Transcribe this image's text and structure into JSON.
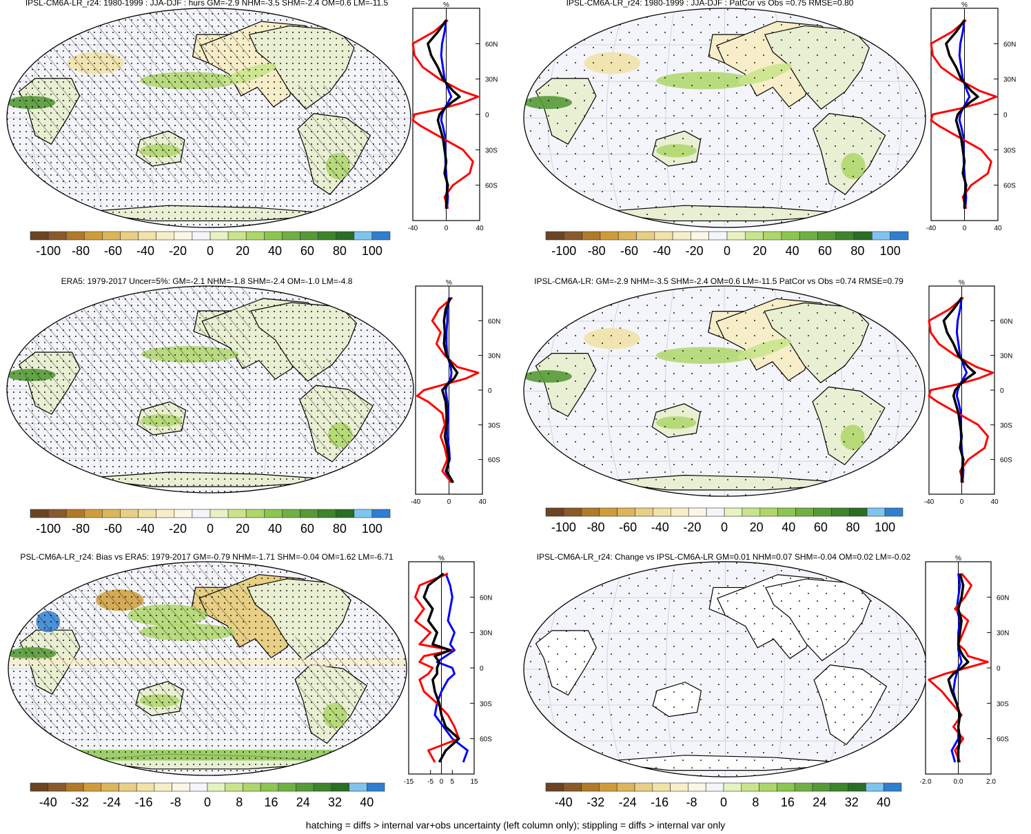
{
  "footnote": "hatching = diffs > internal var+obs uncertainty (left column only); stippling = diffs > internal var only",
  "colors": {
    "scale": [
      "#6b4423",
      "#8a5a2b",
      "#b07a2a",
      "#cf9c3a",
      "#dcb55a",
      "#e8cf86",
      "#f1e2a8",
      "#f7eec9",
      "#fbf7e6",
      "#f4f5fb",
      "#e6f2c2",
      "#c9e48c",
      "#aed66a",
      "#8dc552",
      "#70b043",
      "#559a37",
      "#3d842c",
      "#2a6d24",
      "#7ec4ee",
      "#2f7fcf"
    ],
    "land": "#e9efd2",
    "ocean": "#f4f5fb",
    "line_red": "#ff0000",
    "line_black": "#000000",
    "line_blue": "#0000ff"
  },
  "chart_data": [
    {
      "type": "map+zonal-line",
      "title": "IPSL-CM6A-LR_r24: 1980-1999 : JJA-DJF : hurs GM=-2.9 NHM=-3.5 SHM=-2.4 OM=0.6 LM=-11.5",
      "map_fill": "dry-north",
      "hatching": true,
      "stippling": true,
      "colorbar_labels": [
        "-100",
        "-80",
        "-60",
        "-40",
        "-20",
        "0",
        "20",
        "40",
        "60",
        "80",
        "100"
      ],
      "zonal": {
        "unit_label": "%",
        "x_ticks": [
          "-40",
          "0",
          "40"
        ],
        "xlim": [
          -40,
          40
        ],
        "y_ticks": [
          "60N",
          "30N",
          "0",
          "30S",
          "60S"
        ],
        "lat": [
          80,
          70,
          60,
          50,
          40,
          30,
          20,
          15,
          10,
          5,
          0,
          -5,
          -10,
          -20,
          -30,
          -40,
          -50,
          -60,
          -70,
          -80
        ],
        "series": [
          {
            "color": "red",
            "values": [
              2,
              -15,
              -42,
              -38,
              -28,
              -8,
              18,
              38,
              20,
              -5,
              -38,
              -48,
              -30,
              -5,
              20,
              32,
              28,
              8,
              -2,
              2
            ]
          },
          {
            "color": "black",
            "values": [
              0,
              -10,
              -22,
              -18,
              -10,
              -4,
              8,
              16,
              6,
              -2,
              -8,
              -10,
              -8,
              -4,
              -2,
              0,
              -2,
              2,
              0,
              0
            ]
          },
          {
            "color": "blue",
            "values": [
              0,
              -2,
              -5,
              -6,
              -4,
              -2,
              3,
              6,
              2,
              -2,
              -5,
              -6,
              -4,
              -1,
              -1,
              -1,
              0,
              1,
              2,
              1
            ]
          }
        ]
      }
    },
    {
      "type": "map+zonal-line",
      "title": "IPSL-CM6A-LR_r24: 1980-1999 : JJA-DJF : PatCor vs Obs =0.75 RMSE=0.80",
      "map_fill": "dry-north",
      "hatching": false,
      "stippling": true,
      "colorbar_labels": [
        "-100",
        "-80",
        "-60",
        "-40",
        "-20",
        "0",
        "20",
        "40",
        "60",
        "80",
        "100"
      ],
      "zonal": {
        "unit_label": "%",
        "x_ticks": [
          "-40",
          "0",
          "40"
        ],
        "xlim": [
          -40,
          40
        ],
        "y_ticks": [
          "60N",
          "30N",
          "0",
          "30S",
          "60S"
        ],
        "lat": [
          80,
          70,
          60,
          50,
          40,
          30,
          20,
          15,
          10,
          5,
          0,
          -5,
          -10,
          -20,
          -30,
          -40,
          -50,
          -60,
          -70,
          -80
        ],
        "series": [
          {
            "color": "red",
            "values": [
              2,
              -15,
              -42,
              -38,
              -28,
              -8,
              18,
              38,
              20,
              -5,
              -38,
              -48,
              -30,
              -5,
              20,
              32,
              28,
              8,
              -2,
              2
            ]
          },
          {
            "color": "black",
            "values": [
              0,
              -10,
              -22,
              -18,
              -10,
              -4,
              8,
              16,
              6,
              -2,
              -8,
              -10,
              -8,
              -4,
              -2,
              0,
              -2,
              2,
              0,
              0
            ]
          },
          {
            "color": "blue",
            "values": [
              0,
              -2,
              -5,
              -6,
              -4,
              -2,
              3,
              6,
              2,
              -2,
              -5,
              -6,
              -4,
              -1,
              -1,
              -1,
              0,
              1,
              2,
              1
            ]
          }
        ]
      }
    },
    {
      "type": "map+zonal-line",
      "title": "ERA5: 1979-2017 Uncer=5%: GM=-2.1 NHM=-1.8 SHM=-2.4 OM=-1.0 LM=-4.8",
      "map_fill": "mixed",
      "hatching": true,
      "stippling": true,
      "colorbar_labels": [
        "-100",
        "-80",
        "-60",
        "-40",
        "-20",
        "0",
        "20",
        "40",
        "60",
        "80",
        "100"
      ],
      "zonal": {
        "unit_label": "%",
        "x_ticks": [
          "-40",
          "0",
          "40"
        ],
        "xlim": [
          -40,
          40
        ],
        "y_ticks": [
          "60N",
          "30N",
          "0",
          "30S",
          "60S"
        ],
        "lat": [
          80,
          70,
          60,
          50,
          40,
          30,
          20,
          15,
          10,
          5,
          0,
          -5,
          -10,
          -20,
          -30,
          -40,
          -50,
          -60,
          -70,
          -80
        ],
        "series": [
          {
            "color": "red",
            "values": [
              4,
              -12,
              -20,
              -10,
              -15,
              -5,
              10,
              35,
              20,
              -5,
              -30,
              -38,
              -25,
              -8,
              -5,
              -10,
              -5,
              -2,
              -8,
              3
            ]
          },
          {
            "color": "black",
            "values": [
              2,
              -4,
              -6,
              -5,
              -6,
              -3,
              5,
              10,
              6,
              -2,
              -8,
              -6,
              -4,
              -3,
              -3,
              -5,
              -2,
              0,
              -3,
              5
            ]
          },
          {
            "color": "blue",
            "values": [
              0,
              -2,
              -2,
              -3,
              -3,
              -2,
              2,
              3,
              2,
              -2,
              -4,
              -3,
              -2,
              -1,
              -2,
              -2,
              0,
              1,
              -4,
              3
            ]
          }
        ]
      }
    },
    {
      "type": "map+zonal-line",
      "title": "IPSL-CM6A-LR: GM=-2.9 NHM=-3.5 SHM=-2.4 OM=0.6 LM=-11.5 PatCor vs Obs =0.74 RMSE=0.79",
      "map_fill": "dry-north",
      "hatching": false,
      "stippling": true,
      "colorbar_labels": [
        "-100",
        "-80",
        "-60",
        "-40",
        "-20",
        "0",
        "20",
        "40",
        "60",
        "80",
        "100"
      ],
      "zonal": {
        "unit_label": "%",
        "x_ticks": [
          "-40",
          "0",
          "40"
        ],
        "xlim": [
          -40,
          40
        ],
        "y_ticks": [
          "60N",
          "30N",
          "0",
          "30S",
          "60S"
        ],
        "lat": [
          80,
          70,
          60,
          50,
          40,
          30,
          20,
          15,
          10,
          5,
          0,
          -5,
          -10,
          -20,
          -30,
          -40,
          -50,
          -60,
          -70,
          -80
        ],
        "series": [
          {
            "color": "red",
            "values": [
              2,
              -15,
              -42,
              -38,
              -28,
              -8,
              18,
              38,
              20,
              -5,
              -38,
              -48,
              -30,
              -5,
              20,
              32,
              28,
              8,
              -2,
              2
            ]
          },
          {
            "color": "black",
            "values": [
              0,
              -10,
              -22,
              -18,
              -10,
              -4,
              8,
              16,
              6,
              -2,
              -8,
              -10,
              -8,
              -4,
              -2,
              0,
              -2,
              2,
              0,
              0
            ]
          },
          {
            "color": "blue",
            "values": [
              0,
              -2,
              -5,
              -6,
              -4,
              -2,
              3,
              6,
              2,
              -2,
              -5,
              -6,
              -4,
              -1,
              -1,
              -1,
              0,
              1,
              2,
              1
            ]
          }
        ]
      }
    },
    {
      "type": "map+zonal-line",
      "title": "PSL-CM6A-LR_r24: Bias vs ERA5: 1979-2017 GM=-0.79 NHM=-1.71 SHM=-0.04 OM=1.62 LM=-6.71",
      "map_fill": "bias",
      "hatching": true,
      "stippling": true,
      "colorbar_labels": [
        "-40",
        "-32",
        "-24",
        "-16",
        "-8",
        "0",
        "8",
        "16",
        "24",
        "32",
        "40"
      ],
      "zonal": {
        "unit_label": "%",
        "x_ticks": [
          "-15",
          "-5",
          "0",
          "5",
          "15"
        ],
        "xlim": [
          -15,
          15
        ],
        "y_ticks": [
          "60N",
          "30N",
          "0",
          "30S",
          "60S"
        ],
        "lat": [
          80,
          70,
          60,
          50,
          40,
          30,
          20,
          15,
          10,
          5,
          0,
          -5,
          -10,
          -20,
          -30,
          -40,
          -50,
          -60,
          -70,
          -80
        ],
        "series": [
          {
            "color": "red",
            "values": [
              3,
              -10,
              -12,
              -8,
              -12,
              -5,
              -10,
              5,
              -8,
              -10,
              -4,
              -6,
              -10,
              -8,
              -2,
              3,
              6,
              8,
              -6,
              -3
            ]
          },
          {
            "color": "black",
            "values": [
              1,
              -6,
              -8,
              -4,
              -6,
              -2,
              -4,
              4,
              -3,
              -1,
              -2,
              -2,
              -4,
              -3,
              -1,
              0,
              2,
              8,
              2,
              -1
            ]
          },
          {
            "color": "blue",
            "values": [
              2,
              4,
              5,
              4,
              3,
              6,
              4,
              6,
              2,
              -2,
              5,
              6,
              3,
              0,
              -2,
              -3,
              1,
              5,
              12,
              10
            ]
          }
        ]
      }
    },
    {
      "type": "map+zonal-line",
      "title": "IPSL-CM6A-LR_r24: Change vs IPSL-CM6A-LR GM=0.01 NHM=0.07 SHM=-0.04 OM=0.02 LM=-0.02",
      "map_fill": "near-zero",
      "hatching": false,
      "stippling": true,
      "colorbar_labels": [
        "-40",
        "-32",
        "-24",
        "-16",
        "-8",
        "0",
        "8",
        "16",
        "24",
        "32",
        "40"
      ],
      "zonal": {
        "unit_label": "%",
        "x_ticks": [
          "-2.0",
          "0.0",
          "2.0"
        ],
        "xlim": [
          -2,
          2
        ],
        "y_ticks": [
          "60N",
          "30N",
          "0",
          "30S",
          "60S"
        ],
        "lat": [
          80,
          70,
          60,
          50,
          40,
          30,
          20,
          15,
          10,
          5,
          0,
          -5,
          -10,
          -20,
          -30,
          -40,
          -50,
          -60,
          -70,
          -80
        ],
        "series": [
          {
            "color": "red",
            "values": [
              0.2,
              0.8,
              0.4,
              -0.2,
              0.6,
              0.3,
              0.0,
              0.4,
              0.6,
              1.8,
              0.5,
              -0.8,
              -1.8,
              -1.0,
              -0.4,
              0.2,
              -0.3,
              0.3,
              -0.2,
              0.1
            ]
          },
          {
            "color": "black",
            "values": [
              0.1,
              0.3,
              0.2,
              0.0,
              0.2,
              0.1,
              0.0,
              0.1,
              0.3,
              0.6,
              0.2,
              -0.3,
              -0.6,
              -0.4,
              -0.1,
              0.1,
              0.0,
              0.1,
              0.0,
              0.0
            ]
          },
          {
            "color": "blue",
            "values": [
              0.0,
              0.1,
              0.0,
              -0.1,
              0.1,
              0.0,
              0.0,
              0.0,
              0.1,
              0.2,
              0.0,
              -0.1,
              -0.2,
              -0.3,
              -0.1,
              0.1,
              0.0,
              0.0,
              -0.4,
              -0.2
            ]
          }
        ]
      }
    }
  ]
}
